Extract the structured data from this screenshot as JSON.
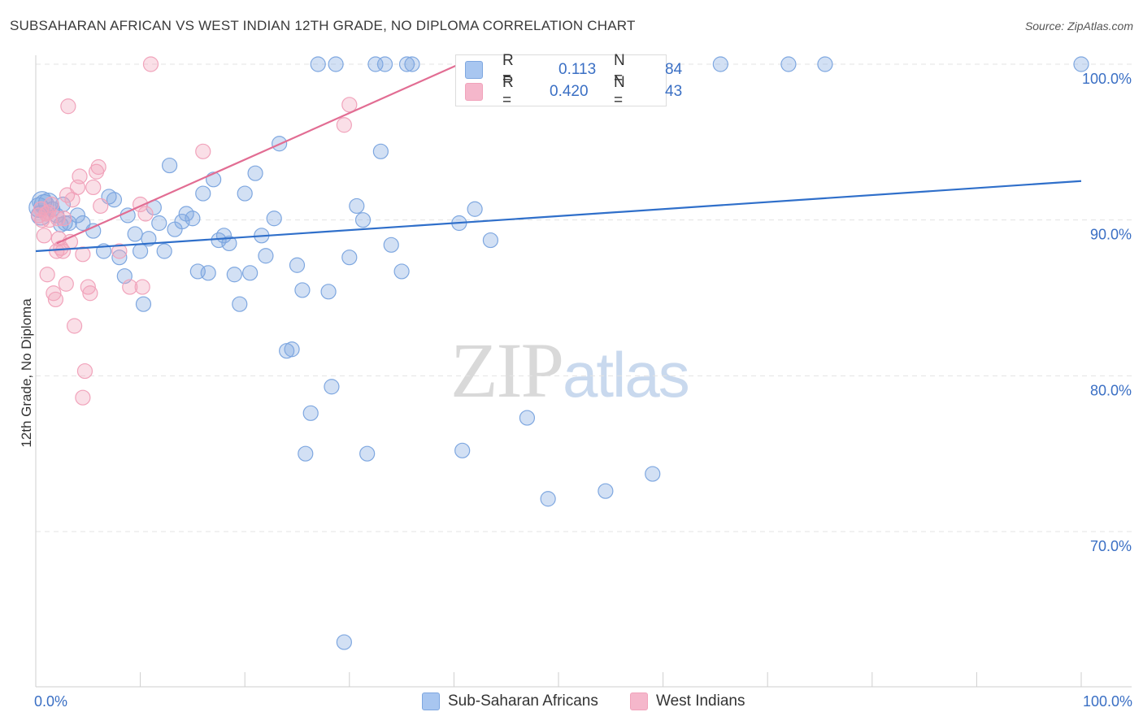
{
  "title": "SUBSAHARAN AFRICAN VS WEST INDIAN 12TH GRADE, NO DIPLOMA CORRELATION CHART",
  "source": "Source: ZipAtlas.com",
  "watermark": {
    "zip": "ZIP",
    "atlas": "atlas"
  },
  "legend": {
    "r_label": "R =",
    "n_label": "N =",
    "series": [
      {
        "r": "0.113",
        "n": "84",
        "color": "#a8c6f0"
      },
      {
        "r": "0.420",
        "n": "43",
        "color": "#f5b7cb"
      }
    ]
  },
  "chart_data": {
    "type": "scatter",
    "title": "SUBSAHARAN AFRICAN VS WEST INDIAN 12TH GRADE, NO DIPLOMA CORRELATION CHART",
    "xlabel": "",
    "ylabel": "12th Grade, No Diploma",
    "xlim": [
      0,
      100
    ],
    "ylim": [
      62.5,
      101.5
    ],
    "x_tick_labels": [
      "0.0%",
      "100.0%"
    ],
    "y_ticks": [
      70,
      80,
      90,
      100
    ],
    "y_tick_labels": [
      "70.0%",
      "80.0%",
      "90.0%",
      "100.0%"
    ],
    "grid": true,
    "legend_position": "bottom",
    "series": [
      {
        "name": "Sub-Saharan Africans",
        "color": "#7ea7e0",
        "line_color": "#2f6fca",
        "trend": [
          [
            0,
            88.0
          ],
          [
            100,
            92.5
          ]
        ],
        "points": [
          [
            0.3,
            90.8
          ],
          [
            0.5,
            90.3
          ],
          [
            0.8,
            91.0
          ],
          [
            1.2,
            91.1
          ],
          [
            1.6,
            90.7
          ],
          [
            2.0,
            90.3
          ],
          [
            2.4,
            89.7
          ],
          [
            2.8,
            89.8
          ],
          [
            3.2,
            89.8
          ],
          [
            4.0,
            90.3
          ],
          [
            4.5,
            89.8
          ],
          [
            5.5,
            89.3
          ],
          [
            6.5,
            88.0
          ],
          [
            7.0,
            91.5
          ],
          [
            7.5,
            91.3
          ],
          [
            8.0,
            87.6
          ],
          [
            8.5,
            86.4
          ],
          [
            8.8,
            90.3
          ],
          [
            9.5,
            89.1
          ],
          [
            10.0,
            88.0
          ],
          [
            10.3,
            84.6
          ],
          [
            10.8,
            88.8
          ],
          [
            11.3,
            90.8
          ],
          [
            11.8,
            89.8
          ],
          [
            12.3,
            88.0
          ],
          [
            12.8,
            93.5
          ],
          [
            13.3,
            89.4
          ],
          [
            14.0,
            89.9
          ],
          [
            14.4,
            90.4
          ],
          [
            15.0,
            90.1
          ],
          [
            15.5,
            86.7
          ],
          [
            16.0,
            91.7
          ],
          [
            16.5,
            86.6
          ],
          [
            17.0,
            92.6
          ],
          [
            17.5,
            88.7
          ],
          [
            18.0,
            89.0
          ],
          [
            18.5,
            88.5
          ],
          [
            19.0,
            86.5
          ],
          [
            19.5,
            84.6
          ],
          [
            20.0,
            91.7
          ],
          [
            20.5,
            86.6
          ],
          [
            21.0,
            93.0
          ],
          [
            21.6,
            89.0
          ],
          [
            22.0,
            87.7
          ],
          [
            22.8,
            90.1
          ],
          [
            23.3,
            94.9
          ],
          [
            24.0,
            81.6
          ],
          [
            24.5,
            81.7
          ],
          [
            25.0,
            87.1
          ],
          [
            25.5,
            85.5
          ],
          [
            25.8,
            75.0
          ],
          [
            26.3,
            77.6
          ],
          [
            27.0,
            100.0
          ],
          [
            28.0,
            85.4
          ],
          [
            28.3,
            79.3
          ],
          [
            28.7,
            100.0
          ],
          [
            29.5,
            62.9
          ],
          [
            30.0,
            87.6
          ],
          [
            30.7,
            90.9
          ],
          [
            31.3,
            90.0
          ],
          [
            31.7,
            75.0
          ],
          [
            32.5,
            100.0
          ],
          [
            33.0,
            94.4
          ],
          [
            33.4,
            100.0
          ],
          [
            34.0,
            88.4
          ],
          [
            35.0,
            86.7
          ],
          [
            35.5,
            100.0
          ],
          [
            36.0,
            100.0
          ],
          [
            40.5,
            89.8
          ],
          [
            40.8,
            75.2
          ],
          [
            42.0,
            90.7
          ],
          [
            43.5,
            88.7
          ],
          [
            46.0,
            100.0
          ],
          [
            47.0,
            77.3
          ],
          [
            49.0,
            72.1
          ],
          [
            52.0,
            100.0
          ],
          [
            54.5,
            72.6
          ],
          [
            59.0,
            73.7
          ],
          [
            65.5,
            100.0
          ],
          [
            72.0,
            100.0
          ],
          [
            75.5,
            100.0
          ],
          [
            100.0,
            100.0
          ],
          [
            0.6,
            91.2
          ],
          [
            2.6,
            91.0
          ]
        ]
      },
      {
        "name": "West Indians",
        "color": "#f1a3bb",
        "line_color": "#e26d93",
        "trend": [
          [
            2.0,
            88.5
          ],
          [
            40.5,
            100.0
          ]
        ],
        "points": [
          [
            0.3,
            90.3
          ],
          [
            0.6,
            90.0
          ],
          [
            0.8,
            89.0
          ],
          [
            1.0,
            90.4
          ],
          [
            1.1,
            86.5
          ],
          [
            1.3,
            90.0
          ],
          [
            1.5,
            91.0
          ],
          [
            1.7,
            85.3
          ],
          [
            1.9,
            84.9
          ],
          [
            2.0,
            88.0
          ],
          [
            2.2,
            88.8
          ],
          [
            2.4,
            88.2
          ],
          [
            2.6,
            88.0
          ],
          [
            2.7,
            90.1
          ],
          [
            2.9,
            85.9
          ],
          [
            3.0,
            91.6
          ],
          [
            3.1,
            97.3
          ],
          [
            3.3,
            88.6
          ],
          [
            3.5,
            91.3
          ],
          [
            3.7,
            83.2
          ],
          [
            4.0,
            92.1
          ],
          [
            4.2,
            92.8
          ],
          [
            4.5,
            87.8
          ],
          [
            4.7,
            80.3
          ],
          [
            4.5,
            78.6
          ],
          [
            5.0,
            85.7
          ],
          [
            5.2,
            85.3
          ],
          [
            5.5,
            92.1
          ],
          [
            5.8,
            93.1
          ],
          [
            6.0,
            93.4
          ],
          [
            6.2,
            90.9
          ],
          [
            8.0,
            88.0
          ],
          [
            9.0,
            85.7
          ],
          [
            10.0,
            91.0
          ],
          [
            10.2,
            85.7
          ],
          [
            10.5,
            90.4
          ],
          [
            11.0,
            100.0
          ],
          [
            16.0,
            94.4
          ],
          [
            29.5,
            96.1
          ],
          [
            30.0,
            97.4
          ],
          [
            0.5,
            90.7
          ],
          [
            2.1,
            90.1
          ],
          [
            1.2,
            90.5
          ]
        ]
      }
    ]
  }
}
